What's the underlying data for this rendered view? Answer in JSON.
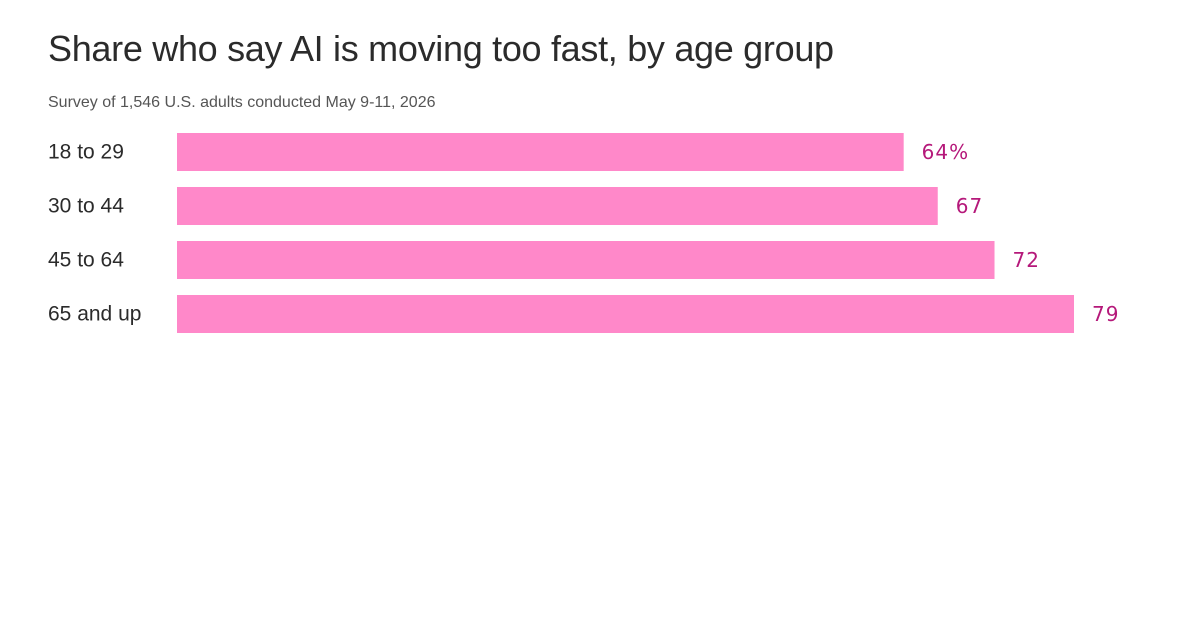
{
  "title": "Share who say AI is moving too fast, by age group",
  "subtitle": "Survey of 1,546 U.S. adults conducted May 9-11, 2026",
  "colors": {
    "bar": "#ff88c9",
    "value_label": "#b5187a",
    "title": "#2b2b2b"
  },
  "chart_data": {
    "type": "bar",
    "orientation": "horizontal",
    "title": "Share who say AI is moving too fast, by age group",
    "subtitle": "Survey of 1,546 U.S. adults conducted May 9-11, 2026",
    "categories": [
      "18 to 29",
      "30 to 44",
      "45 to 64",
      "65 and up"
    ],
    "values": [
      64,
      67,
      72,
      79
    ],
    "value_labels": [
      "64%",
      "67",
      "72",
      "79"
    ],
    "xlim": [
      0,
      79
    ],
    "grid": false,
    "legend": "none"
  }
}
